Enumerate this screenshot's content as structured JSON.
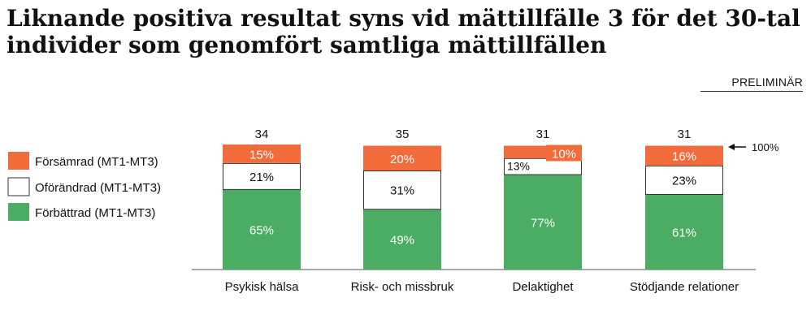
{
  "header": {
    "title": "Liknande positiva resultat syns vid mättillfälle 3 för det 30-tal individer som genomfört samtliga mättillfällen",
    "badge": "PRELIMINÄR"
  },
  "annotation": {
    "text": "100%"
  },
  "colors": {
    "worse": "#f26b3a",
    "unchanged": "#ffffff",
    "improved": "#4aad63",
    "axis": "#555555",
    "text": "#111111"
  },
  "chart_data": {
    "type": "bar",
    "stacked": true,
    "categories": [
      "Psykisk hälsa",
      "Risk- och missbruk",
      "Delaktighet",
      "Stödjande relationer"
    ],
    "counts": [
      "34",
      "35",
      "31",
      "31"
    ],
    "series": [
      {
        "name": "Förbättrad (MT1-MT3)",
        "key": "improved",
        "values": [
          65,
          49,
          77,
          61
        ],
        "labels": [
          "65%",
          "49%",
          "77%",
          "61%"
        ]
      },
      {
        "name": "Oförändrad (MT1-MT3)",
        "key": "unchanged",
        "values": [
          21,
          31,
          13,
          23
        ],
        "labels": [
          "21%",
          "31%",
          "13%",
          "23%"
        ]
      },
      {
        "name": "Försämrad (MT1-MT3)",
        "key": "worse",
        "values": [
          15,
          20,
          10,
          16
        ],
        "labels": [
          "15%",
          "20%",
          "10%",
          "16%"
        ]
      }
    ],
    "legend_order": [
      "worse",
      "unchanged",
      "improved"
    ],
    "legend_position": "left",
    "ylim": [
      0,
      100
    ],
    "grid": false
  }
}
